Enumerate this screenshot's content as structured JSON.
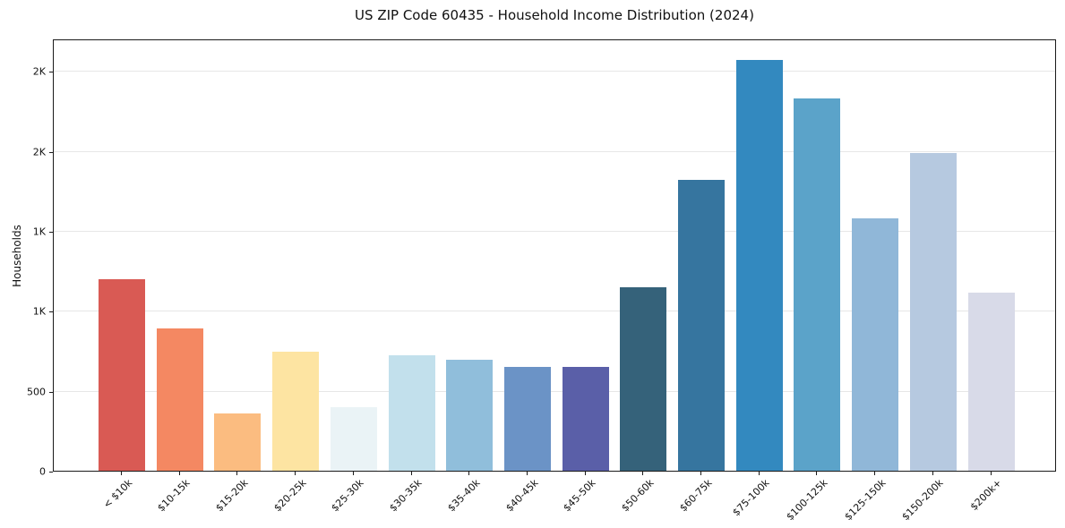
{
  "chart_data": {
    "type": "bar",
    "title": "US ZIP Code 60435 - Household Income Distribution (2024)",
    "xlabel": "",
    "ylabel": "Households",
    "categories": [
      "< $10k",
      "$10-15k",
      "$15-20k",
      "$20-25k",
      "$25-30k",
      "$30-35k",
      "$35-40k",
      "$40-45k",
      "$45-50k",
      "$50-60k",
      "$60-75k",
      "$75-100k",
      "$100-125k",
      "$125-150k",
      "$150-200k",
      "$200k+"
    ],
    "values": [
      1200,
      890,
      360,
      745,
      400,
      720,
      695,
      650,
      650,
      1150,
      1820,
      2570,
      2330,
      1580,
      1990,
      1115
    ],
    "bar_colors": [
      "#d95a54",
      "#f48862",
      "#fbbc80",
      "#fde4a2",
      "#eaf3f6",
      "#c2e0ec",
      "#90bedb",
      "#6b93c6",
      "#5a5fa8",
      "#35627a",
      "#36759f",
      "#3389bf",
      "#5ba3c9",
      "#90b7d8",
      "#b6c9e0",
      "#d8dae8"
    ],
    "ylim": [
      0,
      2704
    ],
    "yticks": [
      {
        "value": 0,
        "label": "0"
      },
      {
        "value": 500,
        "label": "500"
      },
      {
        "value": 1000,
        "label": "1K"
      },
      {
        "value": 1500,
        "label": "1K"
      },
      {
        "value": 2000,
        "label": "2K"
      },
      {
        "value": 2500,
        "label": "2K"
      }
    ],
    "grid": "horizontal",
    "legend": "none",
    "background_color": "#ffffff",
    "grid_color": "#e7e7e7",
    "spine_color": "#1a1a1a",
    "text_color": "#111111"
  }
}
